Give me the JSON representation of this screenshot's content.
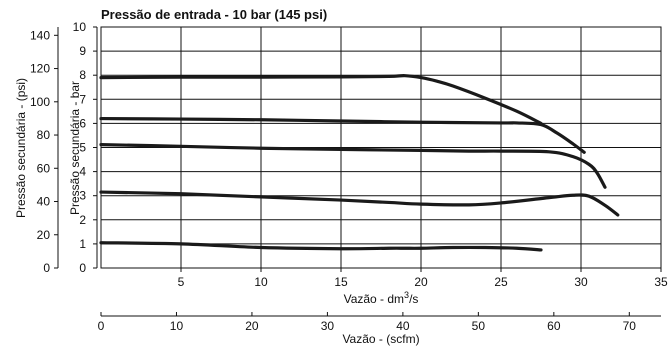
{
  "chart_data": {
    "type": "line",
    "title": "Pressão de entrada - 10 bar (145 psi)",
    "x_axis_primary": {
      "label": "Vazão - dm",
      "label_sup": "3",
      "label_tail": "/s",
      "range": [
        0,
        35
      ],
      "ticks": [
        5,
        10,
        15,
        20,
        25,
        30,
        35
      ]
    },
    "x_axis_secondary": {
      "label": "Vazão  - (scfm)",
      "range": [
        0,
        74.2
      ],
      "ticks": [
        0,
        10,
        20,
        30,
        40,
        50,
        60,
        70
      ]
    },
    "y_axis_primary": {
      "label": "Pressão secundária - bar",
      "range": [
        0,
        10
      ],
      "ticks": [
        0,
        1,
        2,
        3,
        4,
        5,
        6,
        7,
        8,
        9,
        10
      ]
    },
    "y_axis_secondary": {
      "label": "Pressão secundária - (psi)",
      "range": [
        0,
        145
      ],
      "ticks": [
        0,
        20,
        40,
        60,
        80,
        100,
        120,
        140
      ]
    },
    "grid": true,
    "series": [
      {
        "x": [
          0,
          5,
          10,
          15,
          18,
          19,
          20,
          22,
          24,
          26,
          27.5
        ],
        "y": [
          1.05,
          1.0,
          0.85,
          0.8,
          0.82,
          0.82,
          0.82,
          0.85,
          0.85,
          0.82,
          0.75
        ]
      },
      {
        "x": [
          0,
          5,
          10,
          15,
          18,
          20,
          23,
          25,
          28,
          29.5,
          30.5,
          31.5,
          32.3
        ],
        "y": [
          3.15,
          3.08,
          2.95,
          2.82,
          2.72,
          2.65,
          2.62,
          2.7,
          2.92,
          3.02,
          2.98,
          2.6,
          2.2
        ]
      },
      {
        "x": [
          0,
          5,
          10,
          15,
          20,
          23,
          25,
          28,
          29.5,
          30.5,
          31,
          31.5
        ],
        "y": [
          5.12,
          5.05,
          4.97,
          4.92,
          4.88,
          4.85,
          4.85,
          4.82,
          4.62,
          4.3,
          3.95,
          3.35
        ]
      },
      {
        "x": [
          0,
          5,
          10,
          15,
          20,
          25,
          26,
          27.5,
          28.5,
          29.5,
          30.2
        ],
        "y": [
          6.2,
          6.18,
          6.15,
          6.1,
          6.05,
          6.02,
          6.02,
          5.95,
          5.6,
          5.15,
          4.8
        ]
      },
      {
        "x": [
          0,
          5,
          10,
          15,
          18,
          19,
          20,
          21,
          22,
          24,
          26,
          27.5
        ],
        "y": [
          7.9,
          7.92,
          7.92,
          7.93,
          7.95,
          7.98,
          7.9,
          7.75,
          7.55,
          7.05,
          6.5,
          6.0
        ]
      }
    ]
  }
}
